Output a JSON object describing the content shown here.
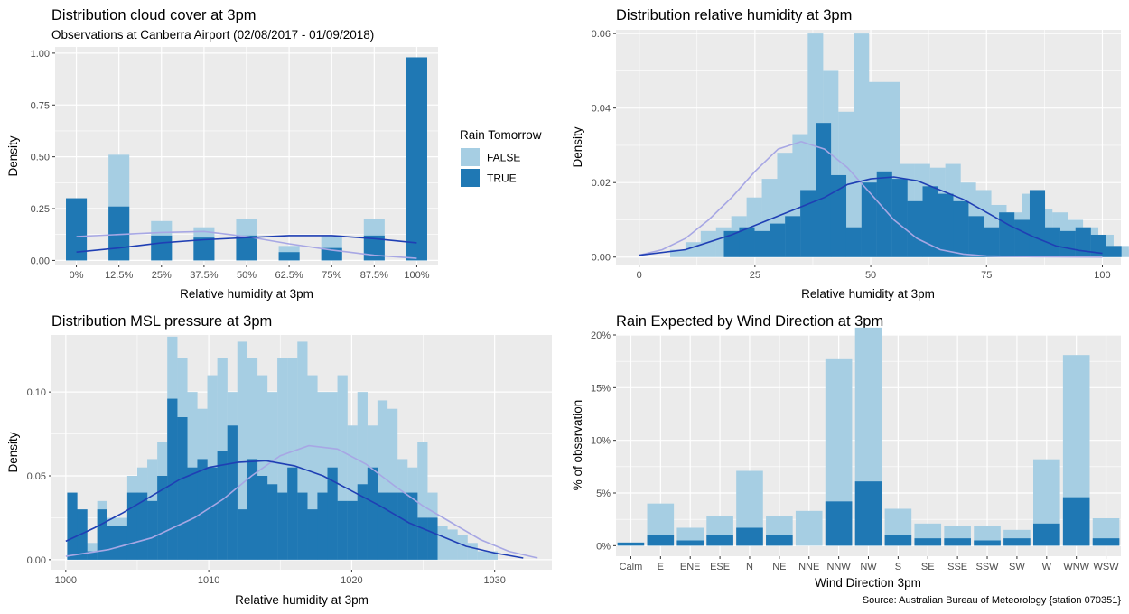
{
  "colors": {
    "false_fill": "#a6cee3",
    "true_fill": "#1f78b4",
    "false_density_line": "#a7a7e4",
    "true_density_line": "#1f3fb4",
    "panel_bg": "#ebebeb",
    "grid": "#ffffff"
  },
  "legend": {
    "title": "Rain Tomorrow",
    "entries": [
      "FALSE",
      "TRUE"
    ]
  },
  "caption": "Source: Australian Bureau of Meteorology {station 070351}",
  "chart_data": [
    {
      "id": "cloud",
      "type": "bar",
      "title": "Distribution cloud cover at 3pm",
      "subtitle": "Observations at Canberra Airport (02/08/2017 - 01/09/2018)",
      "xlabel": "Relative humidity at 3pm",
      "ylabel": "Density",
      "categories": [
        "0%",
        "12.5%",
        "25%",
        "37.5%",
        "50%",
        "62.5%",
        "75%",
        "87.5%",
        "100%"
      ],
      "ylim": [
        -0.02,
        1.03
      ],
      "yticks": [
        0,
        0.25,
        0.5,
        0.75,
        1.0
      ],
      "yticklabels": [
        "0.00",
        "0.25",
        "0.50",
        "0.75",
        "1.00"
      ],
      "series": [
        {
          "name": "FALSE",
          "values": [
            0.24,
            0.51,
            0.19,
            0.16,
            0.2,
            0.07,
            0.12,
            0.2,
            0.98
          ]
        },
        {
          "name": "TRUE",
          "values": [
            0.3,
            0.26,
            0.12,
            0.11,
            0.12,
            0.04,
            0.06,
            0.12,
            0.98
          ]
        }
      ],
      "density_lines": [
        {
          "name": "FALSE",
          "points": [
            [
              0,
              0.115
            ],
            [
              1,
              0.125
            ],
            [
              2,
              0.135
            ],
            [
              3,
              0.14
            ],
            [
              4,
              0.115
            ],
            [
              5,
              0.08
            ],
            [
              6,
              0.05
            ],
            [
              7,
              0.025
            ],
            [
              8,
              0.01
            ]
          ]
        },
        {
          "name": "TRUE",
          "points": [
            [
              0,
              0.04
            ],
            [
              1,
              0.06
            ],
            [
              2,
              0.085
            ],
            [
              3,
              0.1
            ],
            [
              4,
              0.11
            ],
            [
              5,
              0.12
            ],
            [
              6,
              0.12
            ],
            [
              7,
              0.105
            ],
            [
              8,
              0.085
            ]
          ]
        }
      ]
    },
    {
      "id": "humidity",
      "type": "bar",
      "title": "Distribution relative humidity at 3pm",
      "xlabel": "Relative humidity at 3pm",
      "ylabel": "Density",
      "xlim": [
        -5,
        104
      ],
      "ylim": [
        -0.002,
        0.061
      ],
      "xticks": [
        0,
        25,
        50,
        75,
        100
      ],
      "yticks": [
        0,
        0.02,
        0.04,
        0.06
      ],
      "yticklabels": [
        "0.00",
        "0.02",
        "0.04",
        "0.06"
      ],
      "bin_width": 3.3,
      "series": [
        {
          "name": "FALSE",
          "bin_start": 6.7,
          "values": [
            0.002,
            0.004,
            0.007,
            0.008,
            0.011,
            0.016,
            0.021,
            0.028,
            0.033,
            0.06,
            0.05,
            0.039,
            0.06,
            0.047,
            0.047,
            0.025,
            0.025,
            0.024,
            0.025,
            0.02,
            0.018,
            0.014,
            0.012,
            0.017,
            0.013,
            0.012,
            0.01,
            0.008,
            0.006,
            0.003,
            0.002
          ]
        },
        {
          "name": "TRUE",
          "bin_start": 18.3,
          "values": [
            0.007,
            0.008,
            0.007,
            0.009,
            0.011,
            0.018,
            0.036,
            0.022,
            0.008,
            0.02,
            0.023,
            0.021,
            0.015,
            0.019,
            0.017,
            0.015,
            0.011,
            0.008,
            0.012,
            0.01,
            0.018,
            0.008,
            0.007,
            0.008,
            0.006,
            0.003
          ]
        }
      ],
      "density_lines": [
        {
          "name": "FALSE",
          "points": [
            [
              0,
              0.0005
            ],
            [
              5,
              0.002
            ],
            [
              10,
              0.005
            ],
            [
              15,
              0.01
            ],
            [
              20,
              0.016
            ],
            [
              25,
              0.023
            ],
            [
              30,
              0.029
            ],
            [
              35,
              0.031
            ],
            [
              40,
              0.029
            ],
            [
              45,
              0.024
            ],
            [
              50,
              0.017
            ],
            [
              55,
              0.01
            ],
            [
              60,
              0.005
            ],
            [
              65,
              0.002
            ],
            [
              70,
              0.0008
            ],
            [
              75,
              0.0003
            ],
            [
              85,
              0.0001
            ],
            [
              100,
              0.0
            ]
          ]
        },
        {
          "name": "TRUE",
          "points": [
            [
              0,
              0.0005
            ],
            [
              10,
              0.002
            ],
            [
              20,
              0.006
            ],
            [
              30,
              0.011
            ],
            [
              40,
              0.016
            ],
            [
              45,
              0.0195
            ],
            [
              50,
              0.021
            ],
            [
              55,
              0.0215
            ],
            [
              60,
              0.0205
            ],
            [
              65,
              0.018
            ],
            [
              70,
              0.0155
            ],
            [
              75,
              0.012
            ],
            [
              80,
              0.0085
            ],
            [
              85,
              0.0055
            ],
            [
              90,
              0.003
            ],
            [
              95,
              0.0018
            ],
            [
              100,
              0.001
            ]
          ]
        }
      ]
    },
    {
      "id": "pressure",
      "type": "bar",
      "title": "Distribution MSL pressure at 3pm",
      "xlabel": "Relative humidity at 3pm",
      "ylabel": "Density",
      "xlim": [
        999,
        1034
      ],
      "ylim": [
        -0.006,
        0.134
      ],
      "xticks": [
        1000,
        1010,
        1020,
        1030
      ],
      "yticks": [
        0,
        0.05,
        0.1
      ],
      "yticklabels": [
        "0.00",
        "0.05",
        "0.10"
      ],
      "bin_width": 0.7,
      "series": [
        {
          "name": "FALSE",
          "bin_start": 1000.1,
          "values": [
            0.002,
            0.002,
            0.01,
            0.035,
            0.025,
            0.025,
            0.05,
            0.055,
            0.06,
            0.07,
            0.133,
            0.12,
            0.1,
            0.09,
            0.11,
            0.12,
            0.1,
            0.13,
            0.12,
            0.11,
            0.1,
            0.12,
            0.12,
            0.13,
            0.11,
            0.1,
            0.1,
            0.11,
            0.08,
            0.1,
            0.08,
            0.095,
            0.09,
            0.06,
            0.055,
            0.07,
            0.04,
            0.02,
            0.018,
            0.015,
            0.01,
            0.005,
            0.005
          ]
        },
        {
          "name": "TRUE",
          "bin_start": 1000.1,
          "values": [
            0.04,
            0.03,
            0.005,
            0.03,
            0.02,
            0.02,
            0.04,
            0.04,
            0.035,
            0.05,
            0.096,
            0.085,
            0.055,
            0.06,
            0.055,
            0.065,
            0.08,
            0.03,
            0.06,
            0.05,
            0.045,
            0.04,
            0.055,
            0.04,
            0.03,
            0.04,
            0.055,
            0.035,
            0.035,
            0.045,
            0.055,
            0.04,
            0.04,
            0.04,
            0.04,
            0.025,
            0.025
          ]
        }
      ],
      "density_lines": [
        {
          "name": "FALSE",
          "points": [
            [
              1000,
              0.002
            ],
            [
              1003,
              0.006
            ],
            [
              1006,
              0.013
            ],
            [
              1009,
              0.025
            ],
            [
              1011,
              0.036
            ],
            [
              1013,
              0.05
            ],
            [
              1015,
              0.062
            ],
            [
              1017,
              0.068
            ],
            [
              1019,
              0.066
            ],
            [
              1021,
              0.057
            ],
            [
              1023,
              0.044
            ],
            [
              1025,
              0.032
            ],
            [
              1027,
              0.022
            ],
            [
              1029,
              0.012
            ],
            [
              1031,
              0.005
            ],
            [
              1033,
              0.001
            ]
          ]
        },
        {
          "name": "TRUE",
          "points": [
            [
              1000,
              0.011
            ],
            [
              1002,
              0.019
            ],
            [
              1004,
              0.028
            ],
            [
              1006,
              0.038
            ],
            [
              1008,
              0.048
            ],
            [
              1010,
              0.055
            ],
            [
              1012,
              0.058
            ],
            [
              1014,
              0.059
            ],
            [
              1016,
              0.056
            ],
            [
              1018,
              0.05
            ],
            [
              1020,
              0.041
            ],
            [
              1022,
              0.032
            ],
            [
              1024,
              0.022
            ],
            [
              1026,
              0.015
            ],
            [
              1028,
              0.008
            ],
            [
              1030,
              0.004
            ],
            [
              1032,
              0.001
            ]
          ]
        }
      ]
    },
    {
      "id": "wind",
      "type": "bar",
      "title": "Rain Expected by Wind Direction at 3pm",
      "xlabel": "Wind Direction 3pm",
      "ylabel": "% of observation",
      "categories": [
        "Calm",
        "E",
        "ENE",
        "ESE",
        "N",
        "NE",
        "NNE",
        "NNW",
        "NW",
        "S",
        "SE",
        "SSE",
        "SSW",
        "SW",
        "W",
        "WNW",
        "WSW"
      ],
      "ylim": [
        -0.01,
        0.2
      ],
      "yticks": [
        0,
        0.05,
        0.1,
        0.15,
        0.2
      ],
      "yticklabels": [
        "0%",
        "5%",
        "10%",
        "15%",
        "20%"
      ],
      "series": [
        {
          "name": "FALSE",
          "values": [
            0.0,
            0.04,
            0.017,
            0.028,
            0.071,
            0.028,
            0.033,
            0.177,
            0.207,
            0.035,
            0.021,
            0.019,
            0.019,
            0.015,
            0.082,
            0.181,
            0.026
          ]
        },
        {
          "name": "TRUE",
          "values": [
            0.003,
            0.01,
            0.005,
            0.01,
            0.017,
            0.01,
            0.0,
            0.042,
            0.061,
            0.01,
            0.007,
            0.007,
            0.005,
            0.007,
            0.021,
            0.046,
            0.007
          ]
        }
      ]
    }
  ]
}
